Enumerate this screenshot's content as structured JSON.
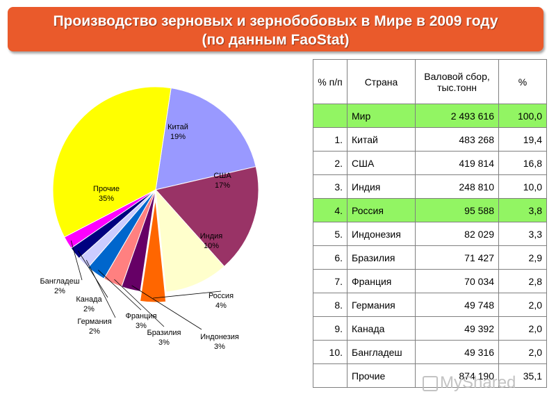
{
  "title": {
    "line1": "Производство зерновых и зернобобовых в Мире в 2009 году",
    "line2": "(по данным FaoStat)"
  },
  "chart_data": {
    "type": "pie",
    "slices": [
      {
        "name": "Китай",
        "value": 19,
        "label": "19%",
        "color": "#9999ff"
      },
      {
        "name": "США",
        "value": 17,
        "label": "17%",
        "color": "#993366"
      },
      {
        "name": "Индия",
        "value": 10,
        "label": "10%",
        "color": "#ffffcc"
      },
      {
        "name": "Россия",
        "value": 4,
        "label": "4%",
        "color": "#ff6600"
      },
      {
        "name": "Индонезия",
        "value": 3,
        "label": "3%",
        "color": "#660066"
      },
      {
        "name": "Бразилия",
        "value": 3,
        "label": "3%",
        "color": "#ff8080"
      },
      {
        "name": "Франция",
        "value": 3,
        "label": "3%",
        "color": "#0066cc"
      },
      {
        "name": "Германия",
        "value": 2,
        "label": "2%",
        "color": "#ccccff"
      },
      {
        "name": "Канада",
        "value": 2,
        "label": "2%",
        "color": "#000080"
      },
      {
        "name": "Бангладеш",
        "value": 2,
        "label": "2%",
        "color": "#ff00ff"
      },
      {
        "name": "Прочие",
        "value": 35,
        "label": "35%",
        "color": "#ffff00"
      }
    ]
  },
  "table": {
    "headers": [
      "% п/п",
      "Страна",
      "Валовой сбор, тыс.тонн",
      "%"
    ],
    "rows": [
      {
        "num": "",
        "country": "Мир",
        "value": "2 493 616",
        "pct": "100,0",
        "highlight": true
      },
      {
        "num": "1.",
        "country": "Китай",
        "value": "483 268",
        "pct": "19,4",
        "highlight": false
      },
      {
        "num": "2.",
        "country": "США",
        "value": "419 814",
        "pct": "16,8",
        "highlight": false
      },
      {
        "num": "3.",
        "country": "Индия",
        "value": "248 810",
        "pct": "10,0",
        "highlight": false
      },
      {
        "num": "4.",
        "country": "Россия",
        "value": "95 588",
        "pct": "3,8",
        "highlight": true
      },
      {
        "num": "5.",
        "country": "Индонезия",
        "value": "82 029",
        "pct": "3,3",
        "highlight": false
      },
      {
        "num": "6.",
        "country": "Бразилия",
        "value": "71 427",
        "pct": "2,9",
        "highlight": false
      },
      {
        "num": "7.",
        "country": "Франция",
        "value": "70 034",
        "pct": "2,8",
        "highlight": false
      },
      {
        "num": "8.",
        "country": "Германия",
        "value": "49 748",
        "pct": "2,0",
        "highlight": false
      },
      {
        "num": "9.",
        "country": "Канада",
        "value": "49 392",
        "pct": "2,0",
        "highlight": false
      },
      {
        "num": "10.",
        "country": "Бангладеш",
        "value": "49 316",
        "pct": "2,0",
        "highlight": false
      },
      {
        "num": "",
        "country": "Прочие",
        "value": "874 190",
        "pct": "35,1",
        "highlight": false
      }
    ]
  },
  "watermark": "MyShared"
}
